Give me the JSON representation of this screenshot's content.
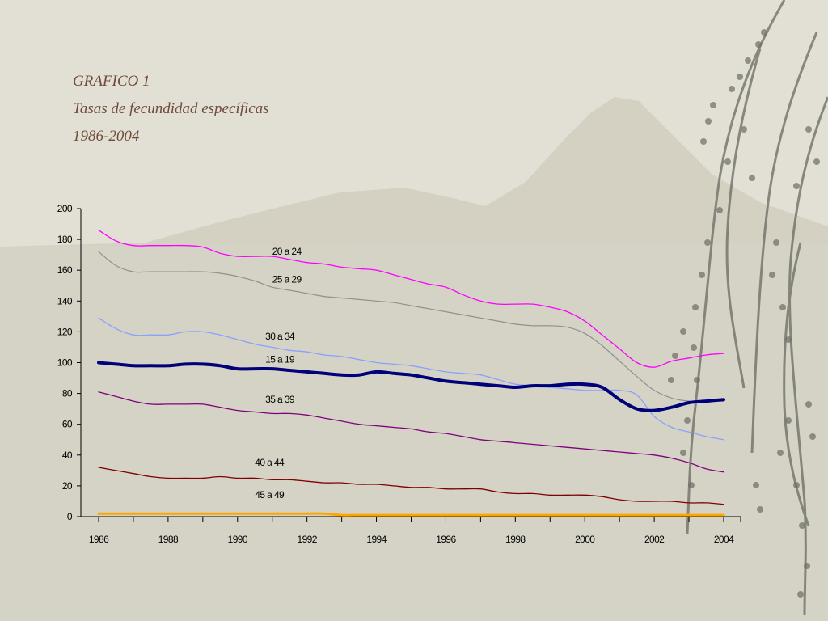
{
  "title": {
    "line1": "GRAFICO 1",
    "line2": "Tasas de fecundidad específicas",
    "line3": "1986-2004"
  },
  "colors": {
    "background": "#e2e0d4",
    "title": "#6e4a3a",
    "mountain": "#c9c6b6"
  },
  "chart_data": {
    "type": "line",
    "title": "",
    "xlabel": "",
    "ylabel": "",
    "xlim": [
      1986,
      2004
    ],
    "ylim": [
      0,
      200
    ],
    "y_ticks": [
      0,
      20,
      40,
      60,
      80,
      100,
      120,
      140,
      160,
      180,
      200
    ],
    "x_ticks": [
      1986,
      1988,
      1990,
      1992,
      1994,
      1996,
      1998,
      2000,
      2002,
      2004
    ],
    "grid": false,
    "legend": "inline labels",
    "x": [
      1986,
      1986.5,
      1987,
      1987.5,
      1988,
      1988.5,
      1989,
      1989.5,
      1990,
      1990.5,
      1991,
      1991.5,
      1992,
      1992.5,
      1993,
      1993.5,
      1994,
      1994.5,
      1995,
      1995.5,
      1996,
      1996.5,
      1997,
      1997.5,
      1998,
      1998.5,
      1999,
      1999.5,
      2000,
      2000.5,
      2001,
      2001.5,
      2002,
      2002.5,
      2003,
      2003.5,
      2004
    ],
    "series": [
      {
        "name": "20 a 24",
        "color": "#ff00ff",
        "width": 1.3,
        "values": [
          186,
          179,
          176,
          176,
          176,
          176,
          175,
          171,
          169,
          169,
          169,
          167,
          165,
          164,
          162,
          161,
          160,
          157,
          154,
          151,
          149,
          144,
          140,
          138,
          138,
          138,
          136,
          133,
          127,
          118,
          109,
          100,
          97,
          101,
          103,
          105,
          106
        ]
      },
      {
        "name": "25 a 29",
        "color": "#909090",
        "width": 1.2,
        "values": [
          172,
          163,
          159,
          159,
          159,
          159,
          159,
          158,
          156,
          153,
          149,
          147,
          145,
          143,
          142,
          141,
          140,
          139,
          137,
          135,
          133,
          131,
          129,
          127,
          125,
          124,
          124,
          123,
          119,
          111,
          101,
          91,
          82,
          77,
          75,
          75,
          75
        ]
      },
      {
        "name": "30 a 34",
        "color": "#8aa0ff",
        "width": 1.3,
        "values": [
          129,
          122,
          118,
          118,
          118,
          120,
          120,
          118,
          115,
          112,
          110,
          108,
          107,
          105,
          104,
          102,
          100,
          99,
          98,
          96,
          94,
          93,
          92,
          89,
          86,
          85,
          84,
          83,
          82,
          82,
          82,
          79,
          65,
          58,
          55,
          52,
          50
        ]
      },
      {
        "name": "15 a 19",
        "color": "#00007a",
        "width": 4,
        "values": [
          100,
          99,
          98,
          98,
          98,
          99,
          99,
          98,
          96,
          96,
          96,
          95,
          94,
          93,
          92,
          92,
          94,
          93,
          92,
          90,
          88,
          87,
          86,
          85,
          84,
          85,
          85,
          86,
          86,
          84,
          76,
          70,
          69,
          71,
          74,
          75,
          76
        ]
      },
      {
        "name": "35 a 39",
        "color": "#800080",
        "width": 1.3,
        "values": [
          81,
          78,
          75,
          73,
          73,
          73,
          73,
          71,
          69,
          68,
          67,
          67,
          66,
          64,
          62,
          60,
          59,
          58,
          57,
          55,
          54,
          52,
          50,
          49,
          48,
          47,
          46,
          45,
          44,
          43,
          42,
          41,
          40,
          38,
          35,
          31,
          29
        ]
      },
      {
        "name": "40 a 44",
        "color": "#800000",
        "width": 1.3,
        "values": [
          32,
          30,
          28,
          26,
          25,
          25,
          25,
          26,
          25,
          25,
          24,
          24,
          23,
          22,
          22,
          21,
          21,
          20,
          19,
          19,
          18,
          18,
          18,
          16,
          15,
          15,
          14,
          14,
          14,
          13,
          11,
          10,
          10,
          10,
          9,
          9,
          8
        ]
      },
      {
        "name": "45 a 49",
        "color": "#ffa500",
        "width": 3,
        "values": [
          2,
          2,
          2,
          2,
          2,
          2,
          2,
          2,
          2,
          2,
          2,
          2,
          2,
          2,
          1,
          1,
          1,
          1,
          1,
          1,
          1,
          1,
          1,
          1,
          1,
          1,
          1,
          1,
          1,
          1,
          1,
          1,
          1,
          1,
          1,
          1,
          1
        ]
      }
    ],
    "labels": [
      {
        "text": "20 a 24",
        "x": 1991,
        "y": 170
      },
      {
        "text": "25 a 29",
        "x": 1991,
        "y": 152
      },
      {
        "text": "30 a 34",
        "x": 1990.8,
        "y": 115
      },
      {
        "text": "15 a 19",
        "x": 1990.8,
        "y": 100
      },
      {
        "text": "35 a 39",
        "x": 1990.8,
        "y": 74
      },
      {
        "text": "40 a 44",
        "x": 1990.5,
        "y": 33
      },
      {
        "text": "45 a 49",
        "x": 1990.5,
        "y": 12
      }
    ]
  }
}
